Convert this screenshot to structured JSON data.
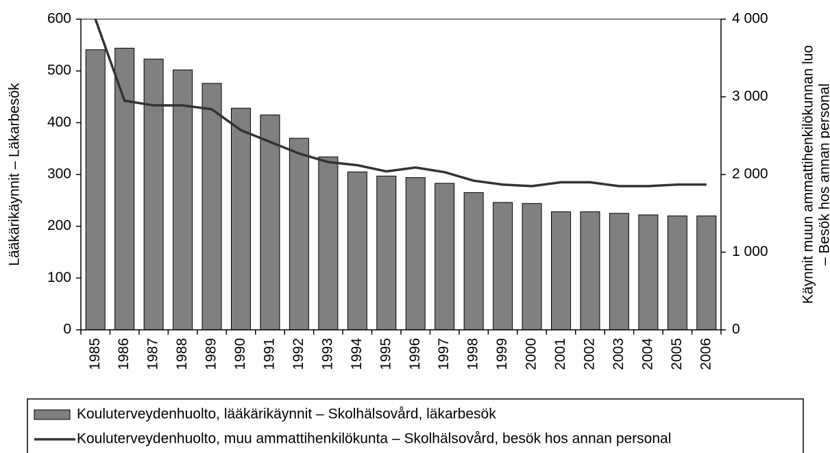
{
  "chart_data": {
    "type": "bar_line",
    "ylabel": "Lääkärikäynnit – Läkarbesök",
    "y2label": [
      "Käynnit muun ammattihenkilökunnan luo",
      "– Besök hos annan personal"
    ],
    "categories": [
      "1985",
      "1986",
      "1987",
      "1988",
      "1989",
      "1990",
      "1991",
      "1992",
      "1993",
      "1994",
      "1995",
      "1996",
      "1997",
      "1998",
      "1999",
      "2000",
      "2001",
      "2002",
      "2003",
      "2004",
      "2005",
      "2006"
    ],
    "series": [
      {
        "name": "Kouluterveydenhuolto, lääkärikäynnit – Skolhälsovård, läkarbesök",
        "type": "bar",
        "color": "#808080",
        "values": [
          541,
          544,
          523,
          502,
          476,
          428,
          415,
          370,
          334,
          305,
          297,
          294,
          283,
          265,
          246,
          244,
          228,
          228,
          225,
          222,
          220,
          220
        ]
      },
      {
        "name": "Kouluterveydenhuolto, muu ammattihenkilökunta – Skolhälsovård, besök hos annan personal",
        "type": "line",
        "color": "#333333",
        "axis": "y2",
        "values": [
          4000,
          2950,
          2890,
          2890,
          2840,
          2570,
          2420,
          2270,
          2160,
          2120,
          2040,
          2090,
          2030,
          1920,
          1870,
          1850,
          1900,
          1900,
          1850,
          1850,
          1870,
          1870
        ]
      }
    ],
    "ylim": [
      0,
      600
    ],
    "yticks": [
      0,
      100,
      200,
      300,
      400,
      500,
      600
    ],
    "y2lim": [
      0,
      4000
    ],
    "y2ticks": [
      0,
      {
        "value": 1000,
        "label": "1 000"
      },
      {
        "value": 2000,
        "label": "2 000"
      },
      {
        "value": 3000,
        "label": "3 000"
      },
      {
        "value": 4000,
        "label": "4 000"
      }
    ],
    "grid": false,
    "legend": "bottom"
  }
}
